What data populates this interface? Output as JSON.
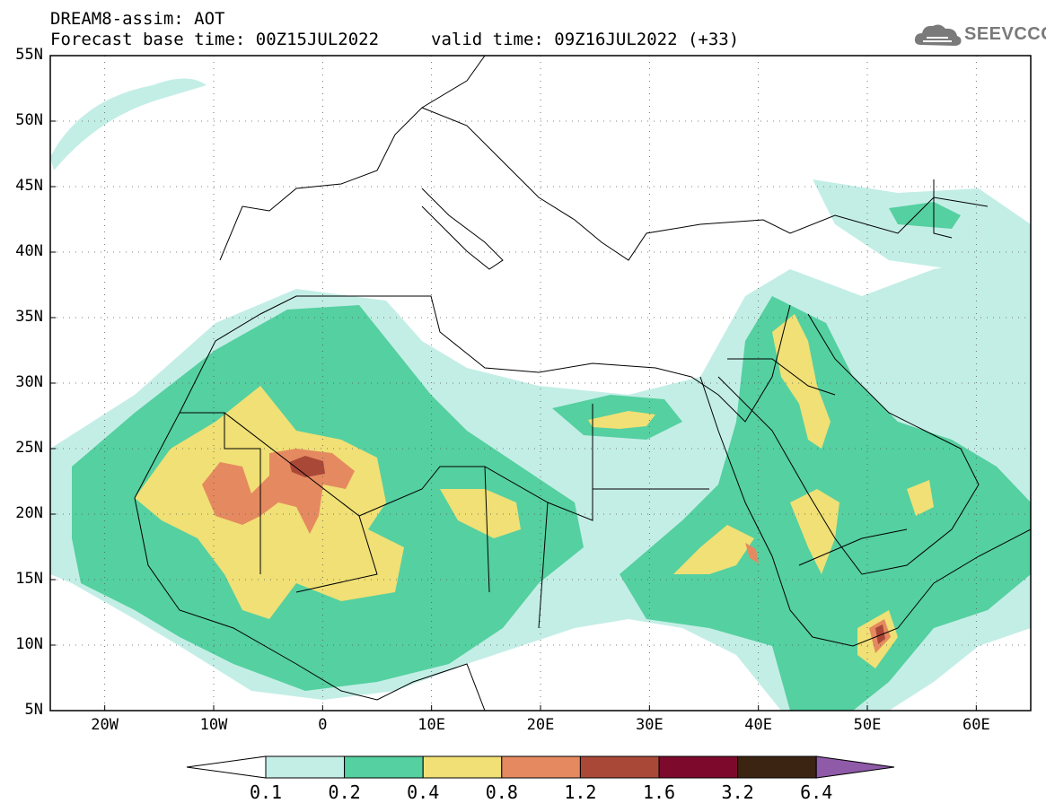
{
  "header": {
    "title": "DREAM8-assim: AOT",
    "base_label": "Forecast base time: 00Z15JUL2022",
    "valid_label": "valid time: 09Z16JUL2022 (+33)"
  },
  "logo": {
    "text": "SEEVCCC",
    "icon": "cloud-icon"
  },
  "map": {
    "lon_range": [
      -25,
      65
    ],
    "lat_range": [
      5,
      55
    ],
    "lat_ticks": [
      "55N",
      "50N",
      "45N",
      "40N",
      "35N",
      "30N",
      "25N",
      "20N",
      "15N",
      "10N",
      "5N"
    ],
    "lon_ticks": [
      "20W",
      "10W",
      "0",
      "10E",
      "20E",
      "30E",
      "40E",
      "50E",
      "60E"
    ],
    "grid": "dotted"
  },
  "colorbar": {
    "levels": [
      "0.1",
      "0.2",
      "0.4",
      "0.8",
      "1.2",
      "1.6",
      "3.2",
      "6.4"
    ],
    "colors": [
      "#ffffff",
      "#c3eee6",
      "#55d0a0",
      "#f0e075",
      "#e58a60",
      "#aa4838",
      "#7d0a2c",
      "#3b2412",
      "#8f5aa8"
    ]
  }
}
